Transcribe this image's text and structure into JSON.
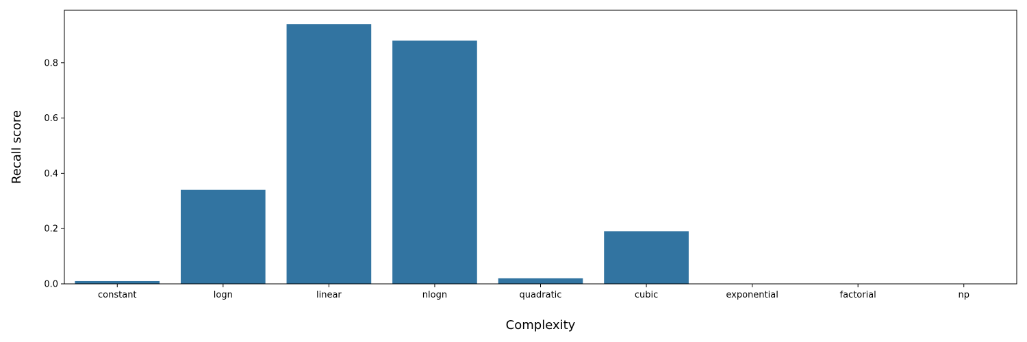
{
  "chart_data": {
    "type": "bar",
    "title": "",
    "xlabel": "Complexity",
    "ylabel": "Recall score",
    "categories": [
      "constant",
      "logn",
      "linear",
      "nlogn",
      "quadratic",
      "cubic",
      "exponential",
      "factorial",
      "np"
    ],
    "values": [
      0.01,
      0.34,
      0.94,
      0.88,
      0.02,
      0.19,
      0.0,
      0.0,
      0.0
    ],
    "ylim": [
      0,
      0.99
    ],
    "yticks": [
      0.0,
      0.2,
      0.4,
      0.6,
      0.8
    ],
    "ytick_labels": [
      "0.0",
      "0.2",
      "0.4",
      "0.6",
      "0.8"
    ],
    "grid": false,
    "bar_color": "#3274a1"
  }
}
